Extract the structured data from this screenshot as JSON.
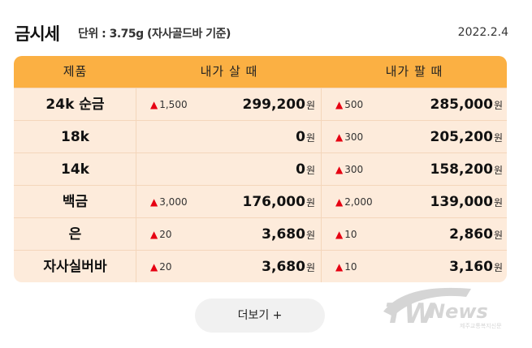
{
  "header": {
    "title": "금시세",
    "unit": "단위 : 3.75g (자사골드바 기준)",
    "date": "2022.2.4"
  },
  "table": {
    "columns": [
      "제품",
      "내가 살 때",
      "내가 팔 때"
    ],
    "currency": "원",
    "change_symbol": "▲",
    "rows": [
      {
        "product": "24k 순금",
        "buy_change": "1,500",
        "buy_price": "299,200",
        "sell_change": "500",
        "sell_price": "285,000"
      },
      {
        "product": "18k",
        "buy_change": "",
        "buy_price": "0",
        "sell_change": "300",
        "sell_price": "205,200"
      },
      {
        "product": "14k",
        "buy_change": "",
        "buy_price": "0",
        "sell_change": "300",
        "sell_price": "158,200"
      },
      {
        "product": "백금",
        "buy_change": "3,000",
        "buy_price": "176,000",
        "sell_change": "2,000",
        "sell_price": "139,000"
      },
      {
        "product": "은",
        "buy_change": "20",
        "buy_price": "3,680",
        "sell_change": "10",
        "sell_price": "2,860"
      },
      {
        "product": "자사실버바",
        "buy_change": "20",
        "buy_price": "3,680",
        "sell_change": "10",
        "sell_price": "3,160"
      }
    ]
  },
  "more_button": {
    "label": "더보기 +"
  },
  "watermark": {
    "logo": "TWNews",
    "tagline": "제주교통복지신문"
  },
  "colors": {
    "header_bg": "#fbb043",
    "table_bg": "#fdebdb",
    "up_arrow": "#e60012",
    "button_bg": "#f1f1f1"
  }
}
